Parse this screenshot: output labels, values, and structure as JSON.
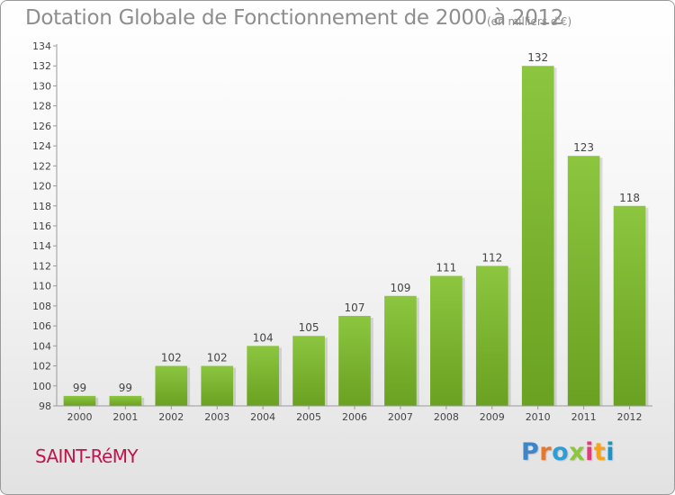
{
  "header": {
    "title": "Dotation Globale de Fonctionnement de 2000 à 2012",
    "subtitle": "(en milliers d'€)"
  },
  "footer": {
    "commune": "SAINT-RéMY",
    "logo": {
      "text": "Proxiti",
      "letter_colors": [
        "#3e86c8",
        "#e8762b",
        "#2e9fd6",
        "#8cc63f",
        "#e03c7a",
        "#f6a31b",
        "#1a93c6"
      ]
    }
  },
  "chart_data": {
    "type": "bar",
    "categories": [
      "2000",
      "2001",
      "2002",
      "2003",
      "2004",
      "2005",
      "2006",
      "2007",
      "2008",
      "2009",
      "2010",
      "2011",
      "2012"
    ],
    "values": [
      99,
      99,
      102,
      102,
      104,
      105,
      107,
      109,
      111,
      112,
      132,
      123,
      118
    ],
    "data_labels": [
      "99",
      "99",
      "102",
      "102",
      "104",
      "105",
      "107",
      "109",
      "111",
      "112",
      "132",
      "123",
      "118"
    ],
    "yticks": [
      "98",
      "100",
      "102",
      "104",
      "106",
      "108",
      "110",
      "112",
      "114",
      "116",
      "118",
      "120",
      "122",
      "124",
      "126",
      "128",
      "130",
      "132",
      "134"
    ],
    "ylim": [
      98,
      134
    ],
    "xlabel": "",
    "ylabel": "",
    "grid": false,
    "bar_color": "#8cc63f",
    "bar_color_dark": "#6aa121"
  }
}
